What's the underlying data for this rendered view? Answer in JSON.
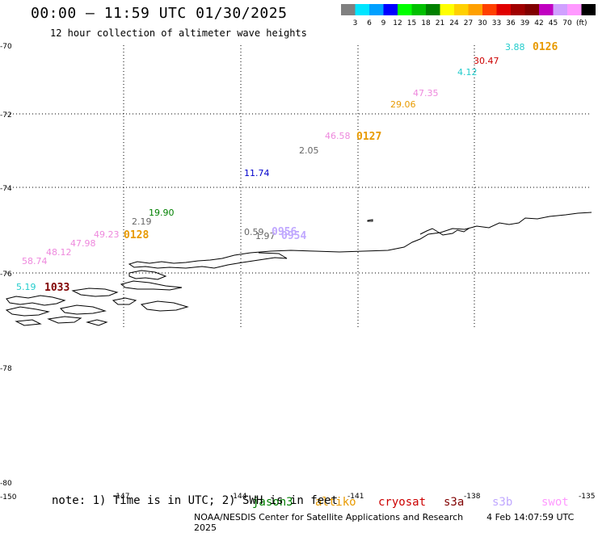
{
  "header": {
    "title": "00:00 – 11:59 UTC 01/30/2025",
    "subtitle": "12 hour collection of altimeter wave heights"
  },
  "color_scale": {
    "colors": [
      "#808080",
      "#00e5ff",
      "#00a0ff",
      "#0000ff",
      "#00ff00",
      "#00c000",
      "#008000",
      "#ffff00",
      "#ffd000",
      "#ffa000",
      "#ff4000",
      "#e00000",
      "#a00000",
      "#800000",
      "#c000c0",
      "#d0a0ff",
      "#ff99ff",
      "#000000"
    ],
    "labels": [
      "3",
      "6",
      "9",
      "12",
      "15",
      "18",
      "21",
      "24",
      "27",
      "30",
      "33",
      "36",
      "39",
      "42",
      "45",
      "70"
    ],
    "unit": "(ft)"
  },
  "axes": {
    "lat_labels": [
      "-70",
      "-72",
      "-74",
      "-76",
      "-78",
      "-80"
    ],
    "lon_labels": [
      "-150",
      "-147",
      "-144",
      "-141",
      "-138",
      "-135"
    ]
  },
  "observations": [
    {
      "text": "3.88",
      "color": "#22cccc"
    },
    {
      "text": "30.47",
      "color": "#cc0000"
    },
    {
      "text": "4.12",
      "color": "#22cccc"
    },
    {
      "text": "47.35",
      "color": "#ee88dd"
    },
    {
      "text": "29.06",
      "color": "#e89a00"
    },
    {
      "text": "46.58",
      "color": "#ee88dd"
    },
    {
      "text": "2.05",
      "color": "#666666"
    },
    {
      "text": "11.74",
      "color": "#0000cc"
    },
    {
      "text": "19.90",
      "color": "#008000"
    },
    {
      "text": "2.19",
      "color": "#666666"
    },
    {
      "text": "49.23",
      "color": "#ee88dd"
    },
    {
      "text": "47.98",
      "color": "#ee88dd"
    },
    {
      "text": "48.12",
      "color": "#ee88dd"
    },
    {
      "text": "58.74",
      "color": "#ee88dd"
    },
    {
      "text": "5.19",
      "color": "#22cccc"
    },
    {
      "text": "0.59",
      "color": "#666666"
    },
    {
      "text": "1.97",
      "color": "#666666"
    }
  ],
  "passes": [
    {
      "text": "0126",
      "color": "#e89a00"
    },
    {
      "text": "0127",
      "color": "#e89a00"
    },
    {
      "text": "0128",
      "color": "#e89a00"
    },
    {
      "text": "1033",
      "color": "#800000"
    },
    {
      "text": "0956",
      "color": "#c0a8ff"
    },
    {
      "text": "0954",
      "color": "#c0a8ff"
    }
  ],
  "legend": {
    "note": "note: 1) Time is in UTC; 2) SWH is in feet",
    "satellites": [
      {
        "name": "jason3",
        "color": "#008000"
      },
      {
        "name": "altiko",
        "color": "#e89a00"
      },
      {
        "name": "cryosat",
        "color": "#cc0000"
      },
      {
        "name": "s3a",
        "color": "#800000"
      },
      {
        "name": "s3b",
        "color": "#c0a8ff"
      },
      {
        "name": "swot",
        "color": "#ff99ff"
      }
    ]
  },
  "footer": {
    "credit": "NOAA/NESDIS Center for Satellite Applications and Research",
    "timestamp": "4 Feb 14:07:59 UTC 2025"
  }
}
